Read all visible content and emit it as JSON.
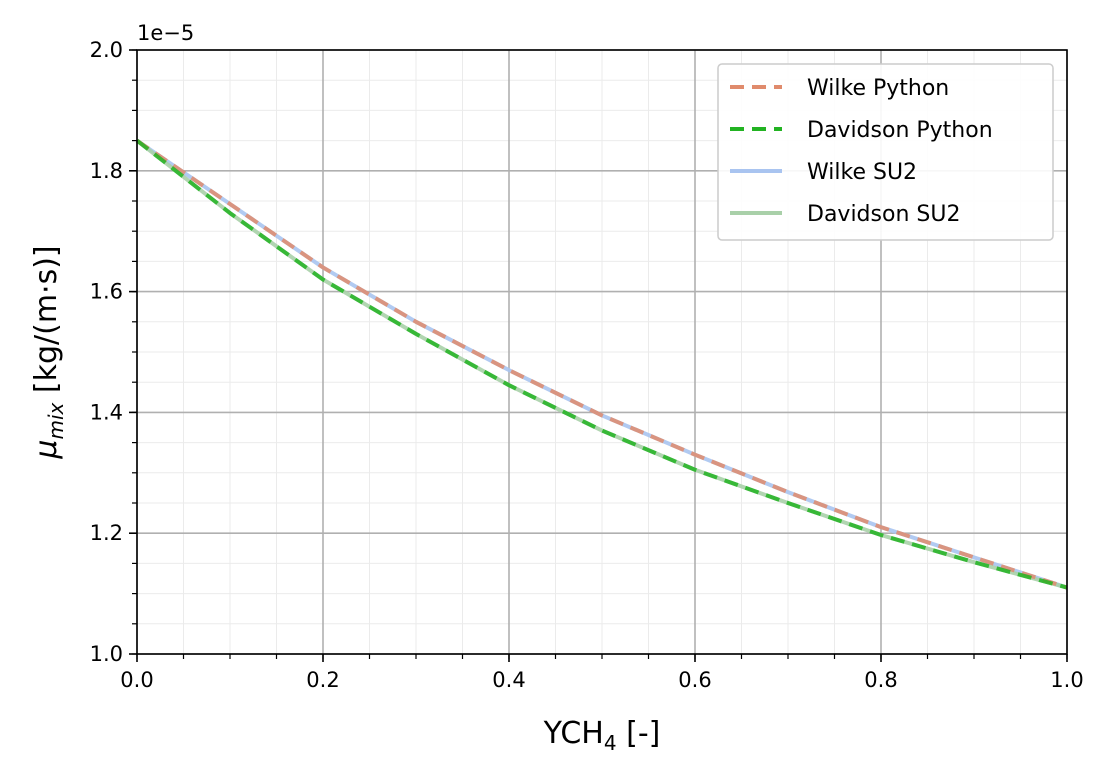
{
  "chart_data": {
    "type": "line",
    "xlabel": "YCH",
    "xlabel_sub": "4",
    "xlabel_suffix": " [-]",
    "ylabel_symbol": "μ",
    "ylabel_sub": "mix",
    "ylabel_suffix": " [kg/(m·s)]",
    "offset_text": "1e−5",
    "xlim": [
      0.0,
      1.0
    ],
    "ylim": [
      1.0,
      2.0
    ],
    "x_ticks": [
      0.0,
      0.2,
      0.4,
      0.6,
      0.8,
      1.0
    ],
    "x_tick_labels": [
      "0.0",
      "0.2",
      "0.4",
      "0.6",
      "0.8",
      "1.0"
    ],
    "y_ticks": [
      1.0,
      1.2,
      1.4,
      1.6,
      1.8,
      2.0
    ],
    "y_tick_labels": [
      "1.0",
      "1.2",
      "1.4",
      "1.6",
      "1.8",
      "2.0"
    ],
    "grid": true,
    "minor_grid": true,
    "legend_position": "top-right",
    "x": [
      0.0,
      0.1,
      0.2,
      0.3,
      0.4,
      0.5,
      0.6,
      0.7,
      0.8,
      0.9,
      1.0
    ],
    "series": [
      {
        "name": "Wilke Python",
        "style": "dashed",
        "color": "#E08B6C",
        "values": [
          1.85,
          1.745,
          1.64,
          1.55,
          1.47,
          1.395,
          1.33,
          1.268,
          1.21,
          1.16,
          1.11
        ]
      },
      {
        "name": "Davidson Python",
        "style": "dashed",
        "color": "#22B322",
        "values": [
          1.85,
          1.73,
          1.62,
          1.53,
          1.445,
          1.37,
          1.305,
          1.25,
          1.197,
          1.152,
          1.11
        ]
      },
      {
        "name": "Wilke SU2",
        "style": "solid",
        "color": "#A9C4F0",
        "values": [
          1.85,
          1.745,
          1.64,
          1.55,
          1.47,
          1.395,
          1.33,
          1.268,
          1.21,
          1.16,
          1.11
        ]
      },
      {
        "name": "Davidson SU2",
        "style": "solid",
        "color": "#A9D0A9",
        "values": [
          1.85,
          1.73,
          1.62,
          1.53,
          1.445,
          1.37,
          1.305,
          1.25,
          1.197,
          1.152,
          1.11
        ]
      }
    ]
  }
}
